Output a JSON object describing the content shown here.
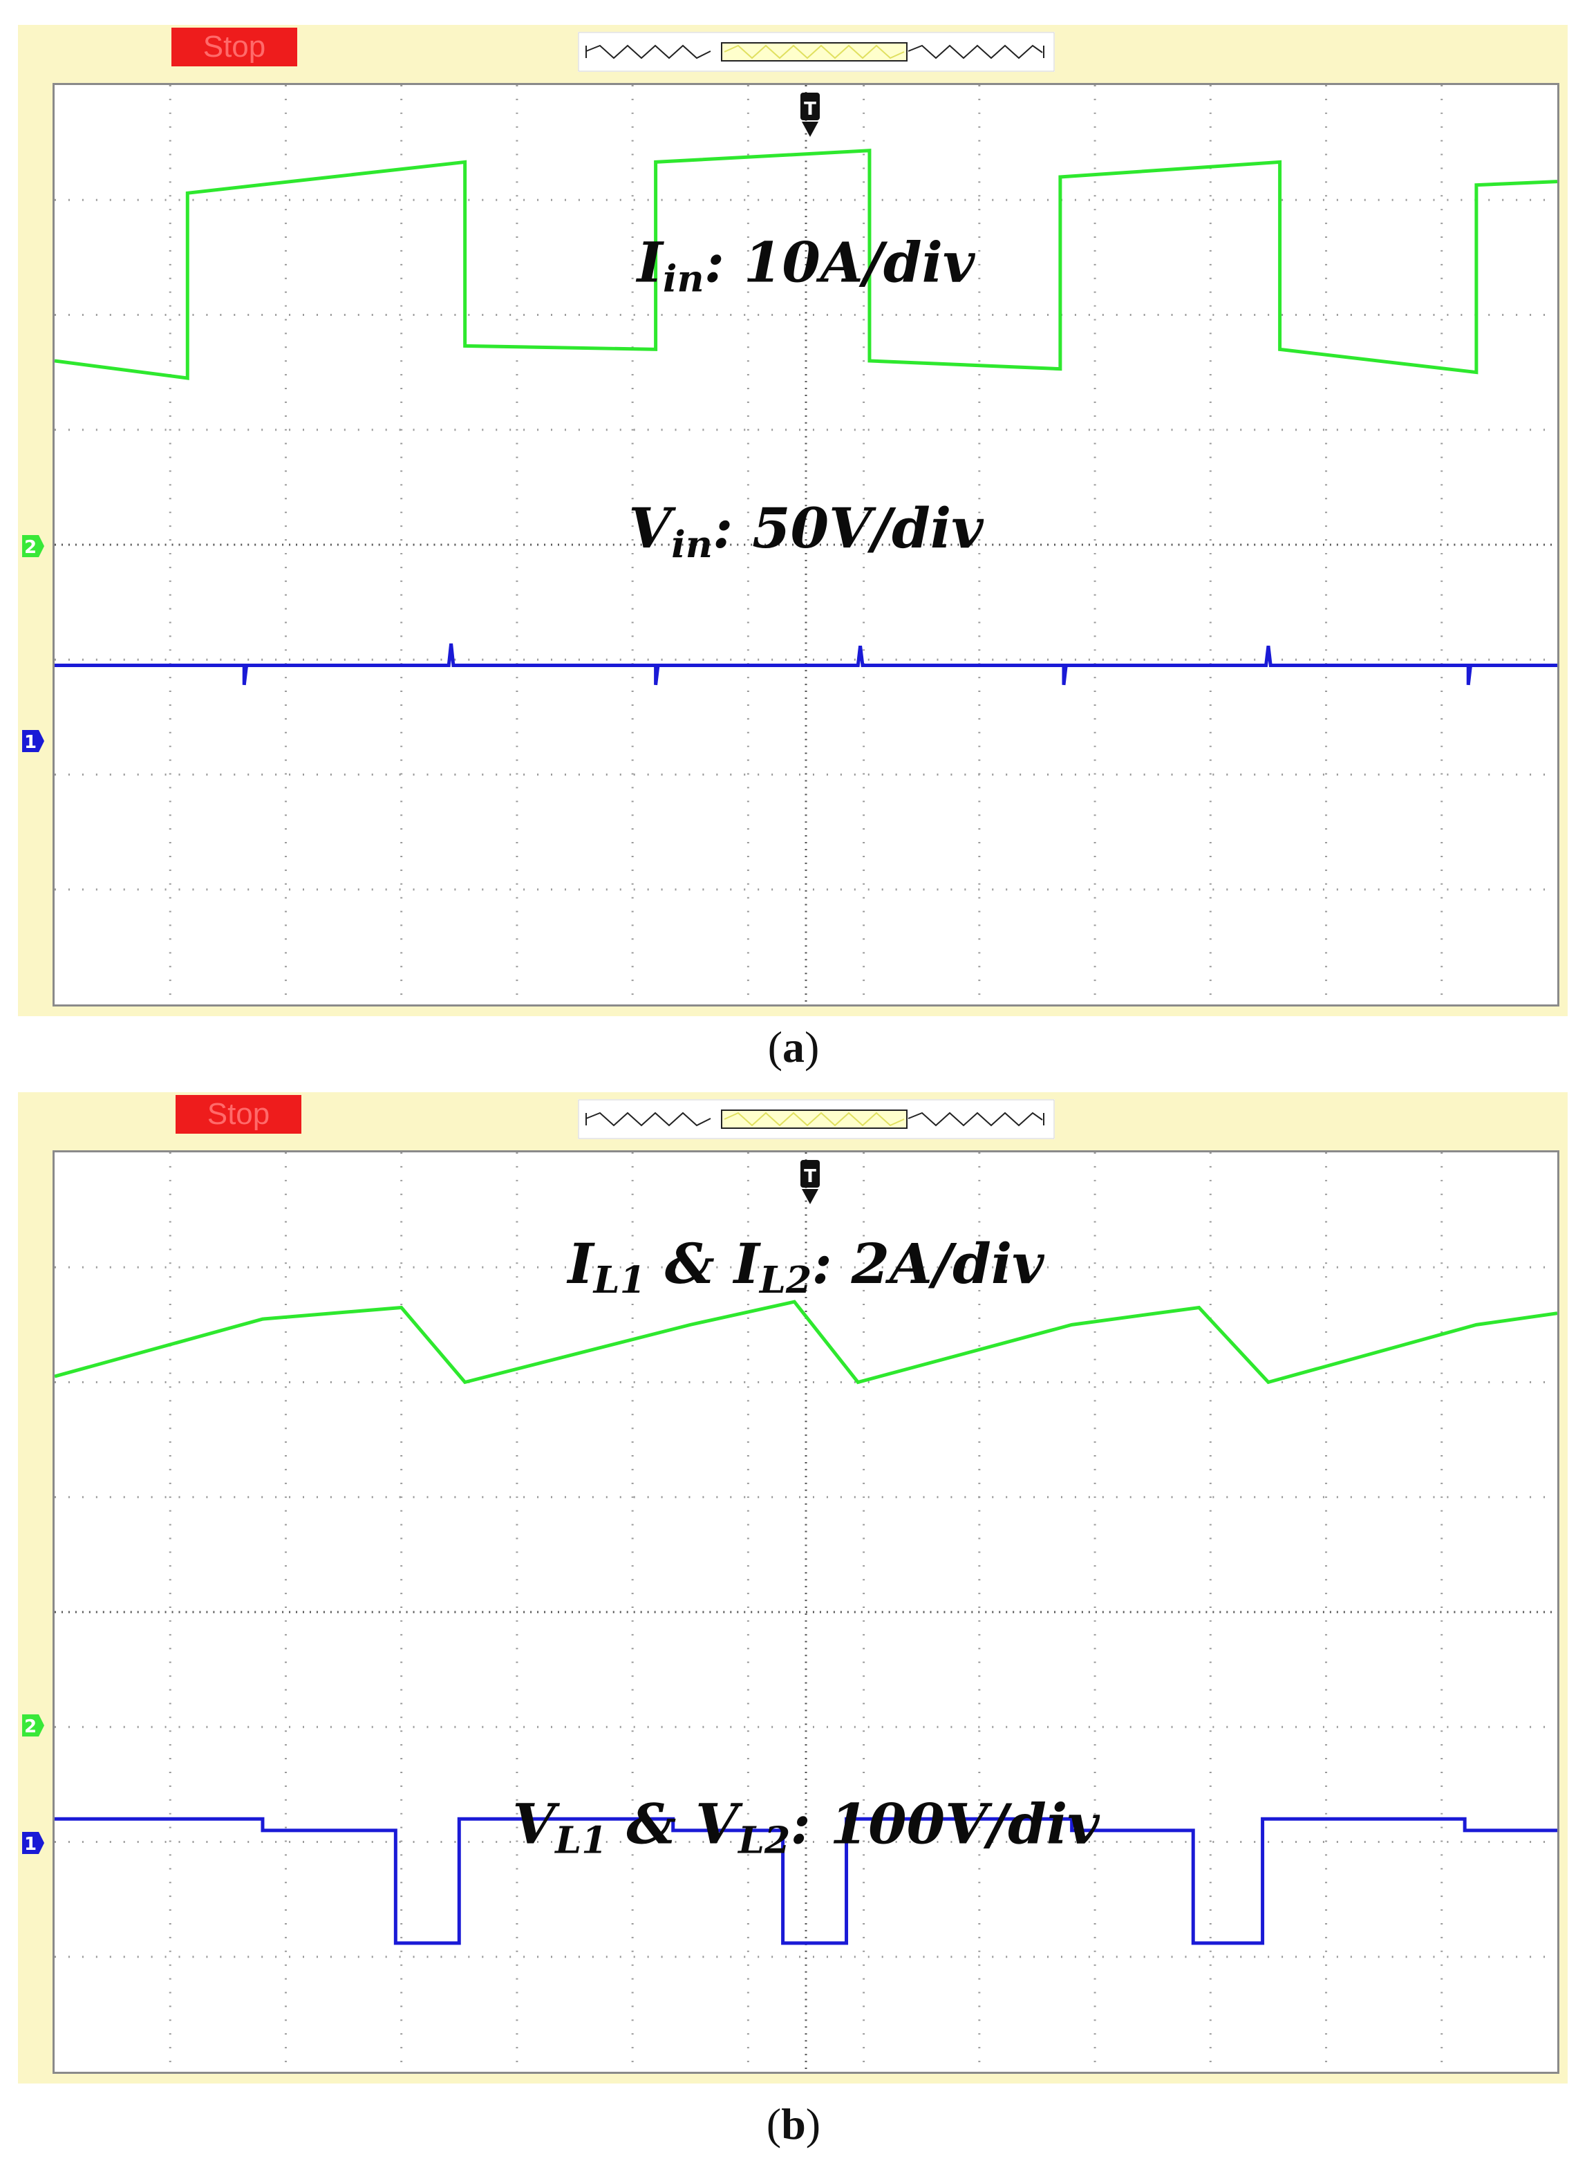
{
  "panels": [
    {
      "id": "a",
      "stop_label": "Stop",
      "caption_letter": "a",
      "annotations": [
        {
          "main": "I",
          "sub": "in",
          "rest": ": 10A/div"
        },
        {
          "main": "V",
          "sub": "in",
          "rest": ": 50V/div"
        }
      ],
      "channel_markers": [
        "2",
        "1"
      ]
    },
    {
      "id": "b",
      "stop_label": "Stop",
      "caption_letter": "b",
      "annotations": [
        {
          "parts": [
            {
              "t": "I"
            },
            {
              "s": "L1"
            },
            {
              "t": " & I"
            },
            {
              "s": "L2"
            },
            {
              "t": ": 2A/div"
            }
          ]
        },
        {
          "parts": [
            {
              "t": "V"
            },
            {
              "s": "L1"
            },
            {
              "t": " & V"
            },
            {
              "s": "L2"
            },
            {
              "t": ": 100V/div"
            }
          ]
        }
      ],
      "channel_markers": [
        "2",
        "1"
      ]
    }
  ],
  "colors": {
    "channel_green": "#2ee82e",
    "channel_blue": "#1a1ad6",
    "grid_dot": "#9a9a9a",
    "stop_red": "#ee1c1c",
    "bezel": "#fbf6c6"
  },
  "chart_data": [
    {
      "type": "line",
      "title": "",
      "x_divisions": 13,
      "y_divisions": 8,
      "series": [
        {
          "name": "Iin",
          "unit_per_div": "10A/div",
          "color": "#2ee82e",
          "x": [
            0,
            1.15,
            1.15,
            3.55,
            3.55,
            5.2,
            5.2,
            7.05,
            7.05,
            8.7,
            8.7,
            10.6,
            10.6,
            12.3,
            12.3,
            13.0
          ],
          "y": [
            5.6,
            5.45,
            7.06,
            7.33,
            5.73,
            5.7,
            7.33,
            7.43,
            5.6,
            5.53,
            7.2,
            7.33,
            5.7,
            5.5,
            7.13,
            7.16
          ]
        },
        {
          "name": "Vin",
          "unit_per_div": "50V/div",
          "color": "#1a1ad6",
          "x": [
            0,
            1.64,
            1.64,
            1.66,
            3.41,
            3.43,
            3.45,
            5.2,
            5.2,
            5.22,
            6.95,
            6.97,
            6.99,
            8.73,
            8.73,
            8.75,
            10.48,
            10.5,
            10.52,
            12.23,
            12.23,
            12.25,
            13.0
          ],
          "y": [
            2.95,
            2.95,
            2.78,
            2.95,
            2.95,
            3.14,
            2.95,
            2.95,
            2.78,
            2.95,
            2.95,
            3.12,
            2.95,
            2.95,
            2.78,
            2.95,
            2.95,
            3.12,
            2.95,
            2.95,
            2.78,
            2.95,
            2.95
          ]
        }
      ]
    },
    {
      "type": "line",
      "title": "",
      "x_divisions": 13,
      "y_divisions": 8,
      "series": [
        {
          "name": "IL1 & IL2",
          "unit_per_div": "2A/div",
          "color": "#2ee82e",
          "x": [
            0,
            1.8,
            3.0,
            3.55,
            5.5,
            6.4,
            6.95,
            8.8,
            9.9,
            10.5,
            12.3,
            13.0
          ],
          "y": [
            6.05,
            6.55,
            6.65,
            6.0,
            6.5,
            6.7,
            6.0,
            6.5,
            6.65,
            6.0,
            6.5,
            6.6
          ]
        },
        {
          "name": "VL1 & VL2",
          "unit_per_div": "100V/div",
          "color": "#1a1ad6",
          "x": [
            0,
            1.8,
            1.8,
            2.95,
            2.95,
            3.5,
            3.5,
            5.35,
            5.35,
            6.3,
            6.3,
            6.85,
            6.85,
            8.8,
            8.8,
            9.85,
            9.85,
            10.45,
            10.45,
            12.2,
            12.2,
            13.0
          ],
          "y": [
            2.2,
            2.2,
            2.1,
            2.1,
            1.12,
            1.12,
            2.2,
            2.2,
            2.1,
            2.1,
            1.12,
            1.12,
            2.2,
            2.2,
            2.1,
            2.1,
            1.12,
            1.12,
            2.2,
            2.2,
            2.1,
            2.1
          ]
        }
      ]
    }
  ]
}
